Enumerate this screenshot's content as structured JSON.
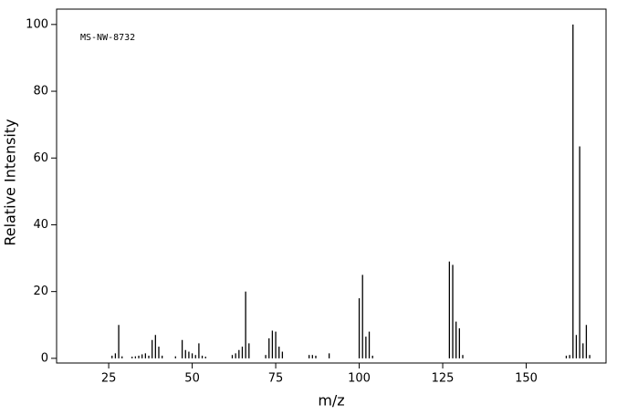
{
  "chart_data": {
    "type": "stick",
    "annotation": "MS-NW-8732",
    "xlabel": "m/z",
    "ylabel": "Relative Intensity",
    "x": [
      26,
      27,
      28,
      29,
      32,
      33,
      34,
      35,
      36,
      37,
      38,
      39,
      40,
      41,
      45,
      47,
      48,
      49,
      50,
      51,
      52,
      53,
      54,
      62,
      63,
      64,
      65,
      66,
      67,
      72,
      73,
      74,
      75,
      76,
      77,
      85,
      86,
      87,
      91,
      100,
      101,
      102,
      103,
      104,
      127,
      128,
      129,
      130,
      131,
      162,
      163,
      164,
      165,
      166,
      167,
      168,
      169
    ],
    "values": [
      0.8,
      1.5,
      10,
      0.6,
      0.5,
      0.6,
      0.8,
      1.2,
      1.5,
      0.8,
      5.5,
      7,
      3.5,
      0.8,
      0.6,
      5.5,
      2.5,
      2,
      1.5,
      1,
      4.5,
      0.8,
      0.5,
      1,
      1.5,
      2.5,
      3.5,
      20,
      4.5,
      1,
      6,
      8.3,
      8,
      3.5,
      2,
      1,
      1,
      0.8,
      1.5,
      18,
      25,
      6.5,
      8,
      0.8,
      29,
      28,
      11,
      9,
      1,
      0.8,
      1,
      100,
      7,
      63.5,
      4.5,
      10,
      1
    ],
    "color": "#000000",
    "xlim": [
      9.4,
      173.9
    ],
    "ylim": [
      -1.4,
      104.6
    ],
    "xticks": [
      25,
      50,
      75,
      100,
      125,
      150
    ],
    "yticks": [
      0,
      20,
      40,
      60,
      80,
      100
    ]
  }
}
